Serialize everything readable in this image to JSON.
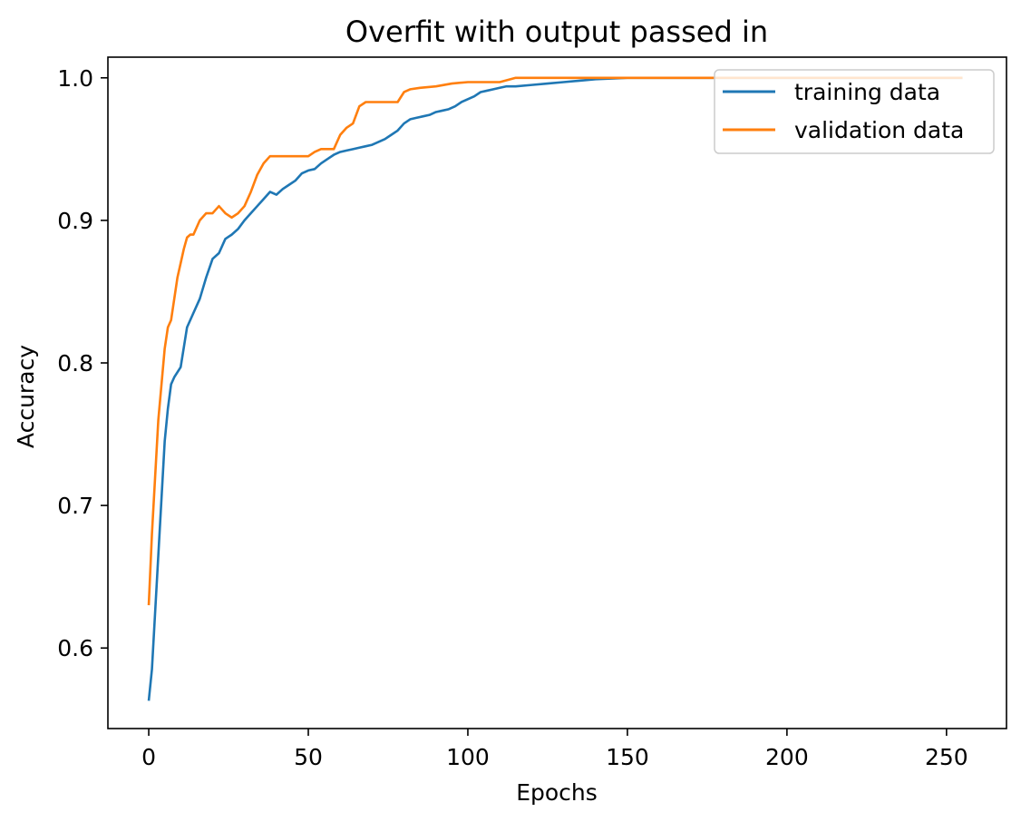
{
  "chart_data": {
    "type": "line",
    "title": "Overfit with output passed in",
    "xlabel": "Epochs",
    "ylabel": "Accuracy",
    "xlim": [
      -12.8,
      268.8
    ],
    "ylim": [
      0.5435,
      1.0145
    ],
    "xticks": [
      0,
      50,
      100,
      150,
      200,
      250
    ],
    "yticks": [
      0.6,
      0.7,
      0.8,
      0.9,
      1.0
    ],
    "xtick_labels": [
      "0",
      "50",
      "100",
      "150",
      "200",
      "250"
    ],
    "ytick_labels": [
      "0.6",
      "0.7",
      "0.8",
      "0.9",
      "1.0"
    ],
    "grid": false,
    "legend_position": "upper right",
    "series": [
      {
        "name": "training data",
        "color": "#1f77b4",
        "x": [
          0,
          1,
          2,
          3,
          4,
          5,
          6,
          7,
          8,
          10,
          12,
          14,
          16,
          18,
          20,
          22,
          24,
          26,
          28,
          30,
          32,
          34,
          36,
          38,
          40,
          42,
          44,
          46,
          48,
          50,
          52,
          54,
          56,
          58,
          60,
          62,
          64,
          66,
          68,
          70,
          72,
          74,
          76,
          78,
          80,
          82,
          84,
          86,
          88,
          90,
          92,
          94,
          96,
          98,
          100,
          102,
          104,
          106,
          108,
          110,
          112,
          115,
          120,
          125,
          130,
          135,
          140,
          145,
          150,
          160,
          170,
          180,
          190,
          200,
          220,
          240,
          255
        ],
        "y": [
          0.563,
          0.585,
          0.625,
          0.665,
          0.705,
          0.745,
          0.768,
          0.785,
          0.79,
          0.797,
          0.825,
          0.835,
          0.845,
          0.86,
          0.873,
          0.877,
          0.887,
          0.89,
          0.894,
          0.9,
          0.905,
          0.91,
          0.915,
          0.92,
          0.918,
          0.922,
          0.925,
          0.928,
          0.933,
          0.935,
          0.936,
          0.94,
          0.943,
          0.946,
          0.948,
          0.949,
          0.95,
          0.951,
          0.952,
          0.953,
          0.955,
          0.957,
          0.96,
          0.963,
          0.968,
          0.971,
          0.972,
          0.973,
          0.974,
          0.976,
          0.977,
          0.978,
          0.98,
          0.983,
          0.985,
          0.987,
          0.99,
          0.991,
          0.992,
          0.993,
          0.994,
          0.994,
          0.995,
          0.996,
          0.997,
          0.998,
          0.999,
          0.9995,
          1.0,
          1.0,
          1.0,
          1.0,
          1.0,
          1.0,
          1.0,
          1.0,
          1.0
        ]
      },
      {
        "name": "validation data",
        "color": "#ff7f0e",
        "x": [
          0,
          1,
          2,
          3,
          4,
          5,
          6,
          7,
          8,
          9,
          10,
          11,
          12,
          13,
          14,
          16,
          18,
          20,
          22,
          24,
          26,
          28,
          30,
          32,
          34,
          36,
          38,
          40,
          42,
          44,
          46,
          48,
          50,
          52,
          54,
          56,
          58,
          60,
          62,
          64,
          66,
          68,
          70,
          72,
          74,
          76,
          78,
          80,
          82,
          85,
          90,
          95,
          100,
          105,
          110,
          115,
          120,
          130,
          140,
          150,
          170,
          200,
          230,
          255
        ],
        "y": [
          0.63,
          0.68,
          0.72,
          0.76,
          0.785,
          0.81,
          0.825,
          0.83,
          0.845,
          0.86,
          0.87,
          0.88,
          0.888,
          0.89,
          0.89,
          0.9,
          0.905,
          0.905,
          0.91,
          0.905,
          0.902,
          0.905,
          0.91,
          0.92,
          0.932,
          0.94,
          0.945,
          0.945,
          0.945,
          0.945,
          0.945,
          0.945,
          0.945,
          0.948,
          0.95,
          0.95,
          0.95,
          0.96,
          0.965,
          0.968,
          0.98,
          0.983,
          0.983,
          0.983,
          0.983,
          0.983,
          0.983,
          0.99,
          0.992,
          0.993,
          0.994,
          0.996,
          0.997,
          0.997,
          0.997,
          1.0,
          1.0,
          1.0,
          1.0,
          1.0,
          1.0,
          1.0,
          1.0,
          1.0
        ]
      }
    ]
  }
}
